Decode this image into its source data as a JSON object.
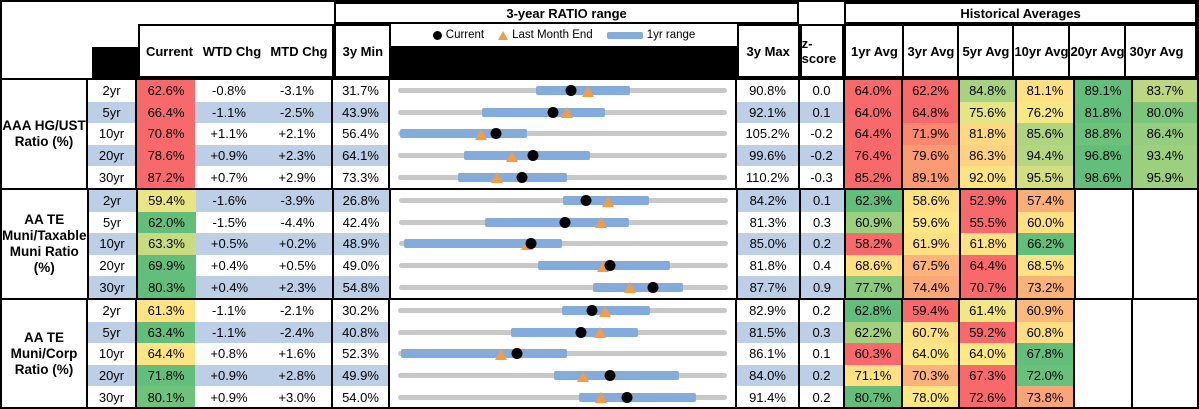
{
  "header": {
    "chart_section_title": "3-year RATIO range",
    "hist_section_title": "Historical Averages",
    "col_current": "Current",
    "col_wtd": "WTD Chg",
    "col_mtd": "MTD Chg",
    "col_3y_min": "3y Min",
    "col_3y_max": "3y Max",
    "col_zscore": "z-score",
    "hist_cols": [
      "1yr Avg",
      "3yr Avg",
      "5yr Avg",
      "10yr Avg",
      "20yr Avg",
      "30yr Avg"
    ],
    "legend": {
      "current": "Current",
      "last_month": "Last Month End",
      "range": "1yr range"
    }
  },
  "colors": {
    "stripe": "#BCCFE7",
    "range_bar": "#83ACDC",
    "track": "#C8C8C8",
    "current_marker": "#000000",
    "last_month_marker": "#F49C44",
    "heat_red": "#F8696B",
    "heat_yellow": "#FFE884",
    "heat_green": "#63BE7B"
  },
  "groups": [
    {
      "label": "AAA HG/UST\nRatio (%)",
      "rows": [
        {
          "tenor": "2yr",
          "current": "62.6%",
          "current_bg": "#F8696B",
          "wtd": "-0.8%",
          "mtd": "-3.1%",
          "min": "31.7%",
          "max": "90.8%",
          "z": "0.0",
          "chart": {
            "bar_left": "42%",
            "bar_width": "28.5%",
            "dot": "52.5%",
            "tri": "57.7%"
          },
          "hist": [
            {
              "v": "64.0%",
              "bg": "#F8696B"
            },
            {
              "v": "62.2%",
              "bg": "#F8696B"
            },
            {
              "v": "84.8%",
              "bg": "#A8D27F"
            },
            {
              "v": "81.1%",
              "bg": "#FFE083"
            },
            {
              "v": "89.1%",
              "bg": "#63BE7B"
            },
            {
              "v": "83.7%",
              "bg": "#BCD780"
            }
          ]
        },
        {
          "tenor": "5yr",
          "current": "66.4%",
          "current_bg": "#F8696B",
          "wtd": "-1.1%",
          "mtd": "-2.5%",
          "min": "43.9%",
          "max": "92.1%",
          "z": "0.1",
          "chart": {
            "bar_left": "25.5%",
            "bar_width": "37.5%",
            "dot": "47%",
            "tri": "51.5%"
          },
          "hist": [
            {
              "v": "64.0%",
              "bg": "#F8696B"
            },
            {
              "v": "64.8%",
              "bg": "#F8696B"
            },
            {
              "v": "75.6%",
              "bg": "#E7E583"
            },
            {
              "v": "76.2%",
              "bg": "#F6E984"
            },
            {
              "v": "81.8%",
              "bg": "#63BE7B"
            },
            {
              "v": "80.0%",
              "bg": "#7EC57C"
            }
          ]
        },
        {
          "tenor": "10yr",
          "current": "70.8%",
          "current_bg": "#F8696B",
          "wtd": "+1.1%",
          "mtd": "+2.1%",
          "min": "56.4%",
          "max": "105.2%",
          "z": "-0.2",
          "chart": {
            "bar_left": "0.5%",
            "bar_width": "38.8%",
            "dot": "29.7%",
            "tri": "25.3%"
          },
          "hist": [
            {
              "v": "64.4%",
              "bg": "#F8696B"
            },
            {
              "v": "71.9%",
              "bg": "#F9886F"
            },
            {
              "v": "81.8%",
              "bg": "#FFD982"
            },
            {
              "v": "85.6%",
              "bg": "#AED47F"
            },
            {
              "v": "88.8%",
              "bg": "#6CC17B"
            },
            {
              "v": "86.4%",
              "bg": "#97CD7E"
            }
          ]
        },
        {
          "tenor": "20yr",
          "current": "78.6%",
          "current_bg": "#F8696B",
          "wtd": "+0.9%",
          "mtd": "+2.3%",
          "min": "64.1%",
          "max": "99.6%",
          "z": "-0.2",
          "chart": {
            "bar_left": "20%",
            "bar_width": "38.3%",
            "dot": "41%",
            "tri": "34.5%"
          },
          "hist": [
            {
              "v": "76.4%",
              "bg": "#F8696B"
            },
            {
              "v": "79.6%",
              "bg": "#FA9B74"
            },
            {
              "v": "86.3%",
              "bg": "#FFD281"
            },
            {
              "v": "94.4%",
              "bg": "#B5D67F"
            },
            {
              "v": "96.8%",
              "bg": "#63BE7B"
            },
            {
              "v": "93.4%",
              "bg": "#9CCF7E"
            }
          ]
        },
        {
          "tenor": "30yr",
          "current": "87.2%",
          "current_bg": "#F8696B",
          "wtd": "+0.7%",
          "mtd": "+2.9%",
          "min": "73.3%",
          "max": "110.2%",
          "z": "-0.3",
          "chart": {
            "bar_left": "18.3%",
            "bar_width": "33.2%",
            "dot": "37.8%",
            "tri": "30%"
          },
          "hist": [
            {
              "v": "85.2%",
              "bg": "#F8696B"
            },
            {
              "v": "89.1%",
              "bg": "#FA9B74"
            },
            {
              "v": "92.0%",
              "bg": "#FFE383"
            },
            {
              "v": "95.5%",
              "bg": "#D3DE81"
            },
            {
              "v": "98.6%",
              "bg": "#63BE7B"
            },
            {
              "v": "95.9%",
              "bg": "#9CCF7E"
            }
          ]
        }
      ]
    },
    {
      "label": "AA TE\nMuni/Taxable\nMuni Ratio\n(%)",
      "rows": [
        {
          "tenor": "2yr",
          "current": "59.4%",
          "current_bg": "#E9E583",
          "wtd": "-1.6%",
          "mtd": "-3.9%",
          "min": "26.8%",
          "max": "84.2%",
          "z": "0.1",
          "chart": {
            "bar_left": "50%",
            "bar_width": "26%",
            "dot": "57%",
            "tri": "63.7%"
          },
          "hist": [
            {
              "v": "62.3%",
              "bg": "#63BE7B"
            },
            {
              "v": "58.6%",
              "bg": "#FFE083"
            },
            {
              "v": "52.9%",
              "bg": "#F8696B"
            },
            {
              "v": "57.4%",
              "bg": "#FBAF78"
            }
          ]
        },
        {
          "tenor": "5yr",
          "current": "62.0%",
          "current_bg": "#63BE7B",
          "wtd": "-1.5%",
          "mtd": "-4.4%",
          "min": "42.4%",
          "max": "81.3%",
          "z": "0.3",
          "chart": {
            "bar_left": "26.2%",
            "bar_width": "43.8%",
            "dot": "50.7%",
            "tri": "61.5%"
          },
          "hist": [
            {
              "v": "60.9%",
              "bg": "#9CCF7E"
            },
            {
              "v": "59.6%",
              "bg": "#FFE884"
            },
            {
              "v": "55.5%",
              "bg": "#F8696B"
            },
            {
              "v": "60.0%",
              "bg": "#FFE083"
            }
          ]
        },
        {
          "tenor": "10yr",
          "current": "63.3%",
          "current_bg": "#C8DB81",
          "wtd": "+0.5%",
          "mtd": "+0.2%",
          "min": "48.9%",
          "max": "85.0%",
          "z": "0.2",
          "chart": {
            "bar_left": "1.7%",
            "bar_width": "48%",
            "dot": "40.3%",
            "tri": "39%"
          },
          "hist": [
            {
              "v": "58.2%",
              "bg": "#F8696B"
            },
            {
              "v": "61.9%",
              "bg": "#FFE083"
            },
            {
              "v": "61.8%",
              "bg": "#FFE284"
            },
            {
              "v": "66.2%",
              "bg": "#63BE7B"
            }
          ]
        },
        {
          "tenor": "20yr",
          "current": "69.9%",
          "current_bg": "#63BE7B",
          "wtd": "+0.4%",
          "mtd": "+0.5%",
          "min": "49.0%",
          "max": "81.8%",
          "z": "0.4",
          "chart": {
            "bar_left": "42.5%",
            "bar_width": "40%",
            "dot": "64.3%",
            "tri": "62.3%"
          },
          "hist": [
            {
              "v": "68.6%",
              "bg": "#FFE083"
            },
            {
              "v": "67.5%",
              "bg": "#FBB379"
            },
            {
              "v": "64.4%",
              "bg": "#F8696B"
            },
            {
              "v": "68.5%",
              "bg": "#FFE284"
            }
          ]
        },
        {
          "tenor": "30yr",
          "current": "80.3%",
          "current_bg": "#63BE7B",
          "wtd": "+0.4%",
          "mtd": "+2.3%",
          "min": "54.8%",
          "max": "87.7%",
          "z": "0.9",
          "chart": {
            "bar_left": "59%",
            "bar_width": "27.5%",
            "dot": "77.3%",
            "tri": "70.3%"
          },
          "hist": [
            {
              "v": "77.7%",
              "bg": "#8BC97D"
            },
            {
              "v": "74.4%",
              "bg": "#FBA877"
            },
            {
              "v": "70.7%",
              "bg": "#F8696B"
            },
            {
              "v": "73.2%",
              "bg": "#FBB279"
            }
          ]
        }
      ]
    },
    {
      "label": "AA TE\nMuni/Corp\nRatio (%)",
      "rows": [
        {
          "tenor": "2yr",
          "current": "61.3%",
          "current_bg": "#FFE483",
          "wtd": "-1.1%",
          "mtd": "-2.1%",
          "min": "30.2%",
          "max": "82.9%",
          "z": "0.2",
          "chart": {
            "bar_left": "49.7%",
            "bar_width": "26.8%",
            "dot": "59%",
            "tri": "63%"
          },
          "hist": [
            {
              "v": "62.8%",
              "bg": "#63BE7B"
            },
            {
              "v": "59.4%",
              "bg": "#F8696B"
            },
            {
              "v": "61.4%",
              "bg": "#F2E784"
            },
            {
              "v": "60.9%",
              "bg": "#FBBA7A"
            }
          ]
        },
        {
          "tenor": "5yr",
          "current": "63.4%",
          "current_bg": "#63BE7B",
          "wtd": "-1.1%",
          "mtd": "-2.4%",
          "min": "40.8%",
          "max": "81.5%",
          "z": "0.3",
          "chart": {
            "bar_left": "34.3%",
            "bar_width": "38.7%",
            "dot": "55.7%",
            "tri": "61.5%"
          },
          "hist": [
            {
              "v": "62.2%",
              "bg": "#A5D17F"
            },
            {
              "v": "60.7%",
              "bg": "#FFE183"
            },
            {
              "v": "59.2%",
              "bg": "#F8696B"
            },
            {
              "v": "60.8%",
              "bg": "#FFDD82"
            }
          ]
        },
        {
          "tenor": "10yr",
          "current": "64.4%",
          "current_bg": "#FFE483",
          "wtd": "+0.8%",
          "mtd": "+1.6%",
          "min": "52.3%",
          "max": "86.1%",
          "z": "0.1",
          "chart": {
            "bar_left": "1%",
            "bar_width": "50.3%",
            "dot": "36.2%",
            "tri": "31.3%"
          },
          "hist": [
            {
              "v": "60.3%",
              "bg": "#F8696B"
            },
            {
              "v": "64.0%",
              "bg": "#FFE884"
            },
            {
              "v": "64.0%",
              "bg": "#FFE884"
            },
            {
              "v": "67.8%",
              "bg": "#63BE7B"
            }
          ]
        },
        {
          "tenor": "20yr",
          "current": "71.8%",
          "current_bg": "#63BE7B",
          "wtd": "+0.9%",
          "mtd": "+2.8%",
          "min": "49.9%",
          "max": "84.0%",
          "z": "0.2",
          "chart": {
            "bar_left": "47.5%",
            "bar_width": "37.8%",
            "dot": "64.3%",
            "tri": "56.2%"
          },
          "hist": [
            {
              "v": "71.1%",
              "bg": "#FFE183"
            },
            {
              "v": "70.3%",
              "bg": "#FBB379"
            },
            {
              "v": "67.3%",
              "bg": "#F8696B"
            },
            {
              "v": "72.0%",
              "bg": "#67C07B"
            }
          ]
        },
        {
          "tenor": "30yr",
          "current": "80.1%",
          "current_bg": "#6FC27B",
          "wtd": "+0.9%",
          "mtd": "+3.0%",
          "min": "54.0%",
          "max": "91.4%",
          "z": "0.2",
          "chart": {
            "bar_left": "55%",
            "bar_width": "35.5%",
            "dot": "69.7%",
            "tri": "61.8%"
          },
          "hist": [
            {
              "v": "80.7%",
              "bg": "#63BE7B"
            },
            {
              "v": "78.0%",
              "bg": "#FFE884"
            },
            {
              "v": "72.6%",
              "bg": "#F8696B"
            },
            {
              "v": "73.8%",
              "bg": "#FBA477"
            }
          ]
        }
      ]
    }
  ]
}
